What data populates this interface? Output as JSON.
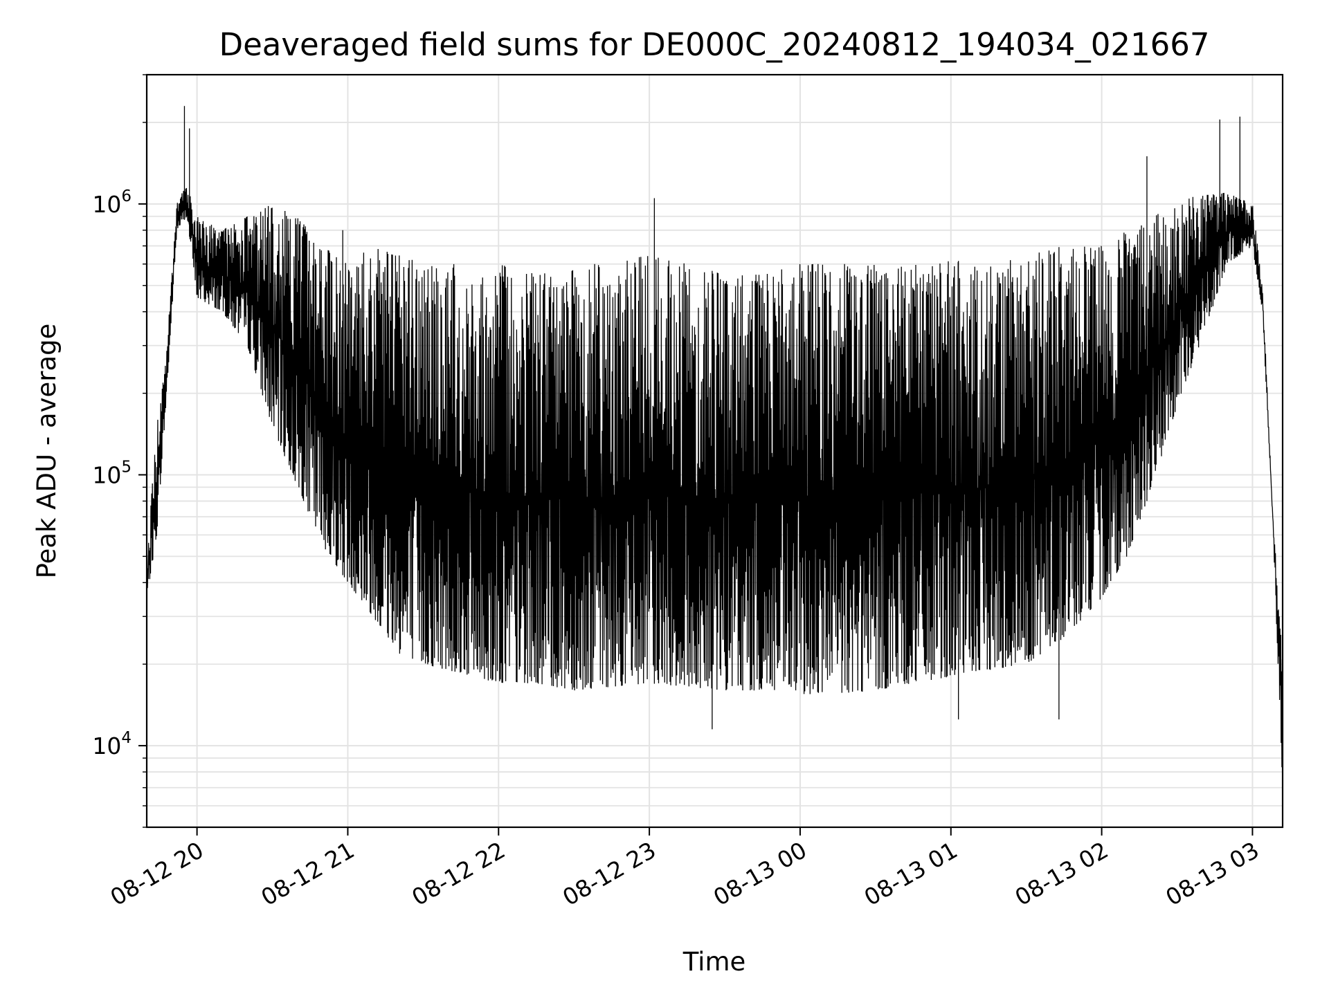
{
  "chart_data": {
    "type": "line",
    "title": "Deaveraged field sums for DE000C_20240812_194034_021667",
    "xlabel": "Time",
    "ylabel": "Peak ADU - average",
    "yscale": "log",
    "ylim": [
      5000,
      3000000
    ],
    "xlim": [
      "08-12 19:40",
      "08-13 03:12"
    ],
    "grid": true,
    "line_color": "#000000",
    "x_ticks": [
      "08-12 20",
      "08-12 21",
      "08-12 22",
      "08-12 23",
      "08-13 00",
      "08-13 01",
      "08-13 02",
      "08-13 03"
    ],
    "y_ticks": [
      {
        "base": "10",
        "exp": "4",
        "value": 10000
      },
      {
        "base": "10",
        "exp": "5",
        "value": 100000
      },
      {
        "base": "10",
        "exp": "6",
        "value": 1000000
      }
    ],
    "series": [
      {
        "x": [
          "08-12 19:40",
          "08-12 19:44",
          "08-12 19:48",
          "08-12 19:52",
          "08-12 19:56",
          "08-12 20:00",
          "08-12 20:10",
          "08-12 20:20",
          "08-12 20:30",
          "08-12 20:40",
          "08-12 20:50",
          "08-12 21:00",
          "08-12 21:10",
          "08-12 21:20",
          "08-12 21:30",
          "08-12 21:40",
          "08-12 21:50",
          "08-12 22:00",
          "08-12 22:15",
          "08-12 22:30",
          "08-12 22:45",
          "08-12 23:00",
          "08-12 23:15",
          "08-12 23:30",
          "08-12 23:45",
          "08-13 00:00",
          "08-13 00:15",
          "08-13 00:30",
          "08-13 00:45",
          "08-13 01:00",
          "08-13 01:15",
          "08-13 01:30",
          "08-13 01:45",
          "08-13 02:00",
          "08-13 02:10",
          "08-13 02:20",
          "08-13 02:30",
          "08-13 02:40",
          "08-13 02:50",
          "08-13 03:00",
          "08-13 03:04",
          "08-13 03:08",
          "08-13 03:12"
        ],
        "low": [
          35000,
          60000,
          200000,
          800000,
          900000,
          450000,
          400000,
          300000,
          150000,
          90000,
          55000,
          40000,
          30000,
          22000,
          20000,
          19000,
          18000,
          17000,
          17000,
          16000,
          16500,
          17000,
          16500,
          16000,
          16000,
          15500,
          15500,
          16000,
          17000,
          18000,
          19000,
          20000,
          25000,
          35000,
          50000,
          90000,
          180000,
          320000,
          600000,
          700000,
          400000,
          70000,
          7000
        ],
        "high": [
          50000,
          150000,
          300000,
          1000000,
          1200000,
          900000,
          800000,
          900000,
          1000000,
          900000,
          700000,
          600000,
          700000,
          650000,
          600000,
          600000,
          600000,
          600000,
          550000,
          600000,
          600000,
          650000,
          600000,
          550000,
          550000,
          600000,
          600000,
          600000,
          600000,
          620000,
          600000,
          650000,
          700000,
          700000,
          800000,
          900000,
          1000000,
          1100000,
          1100000,
          1000000,
          500000,
          75000,
          20000
        ]
      }
    ],
    "spikes": [
      {
        "x": "08-12 19:55",
        "y": 2300000
      },
      {
        "x": "08-12 19:57",
        "y": 1900000
      },
      {
        "x": "08-12 20:58",
        "y": 800000
      },
      {
        "x": "08-12 23:02",
        "y": 1050000
      },
      {
        "x": "08-12 23:25",
        "y": 11500
      },
      {
        "x": "08-13 02:18",
        "y": 1500000
      },
      {
        "x": "08-13 02:47",
        "y": 2050000
      },
      {
        "x": "08-13 02:55",
        "y": 2100000
      },
      {
        "x": "08-13 01:03",
        "y": 12500
      },
      {
        "x": "08-13 01:43",
        "y": 12500
      }
    ]
  }
}
